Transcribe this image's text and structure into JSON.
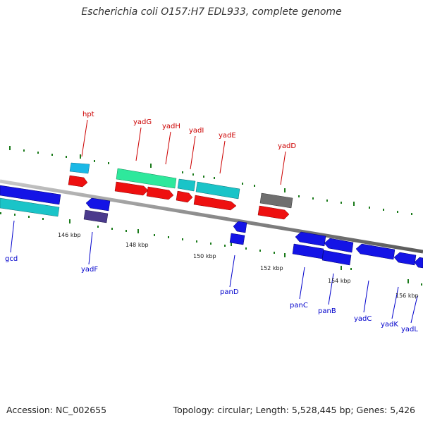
{
  "title": "Escherichia coli O157:H7 EDL933, complete genome",
  "footer": {
    "accession": "Accession: NC_002655",
    "summary": "Topology: circular; Length: 5,528,445 bp; Genes: 5,426"
  },
  "colors": {
    "backbone": "#8c8c8c",
    "top_label": "#cc0000",
    "bottom_label": "#0000cc",
    "tick": "#1a7a1a"
  },
  "kbp_labels": [
    "146 kbp",
    "148 kbp",
    "150 kbp",
    "152 kbp",
    "154 kbp",
    "156 kbp"
  ],
  "genes_top": [
    "hpt",
    "yadG",
    "yadH",
    "yadI",
    "yadE",
    "yadD"
  ],
  "genes_bottom": [
    "gcd",
    "yadF",
    "panD",
    "panC",
    "panB",
    "yadC",
    "yadK",
    "yadL"
  ]
}
